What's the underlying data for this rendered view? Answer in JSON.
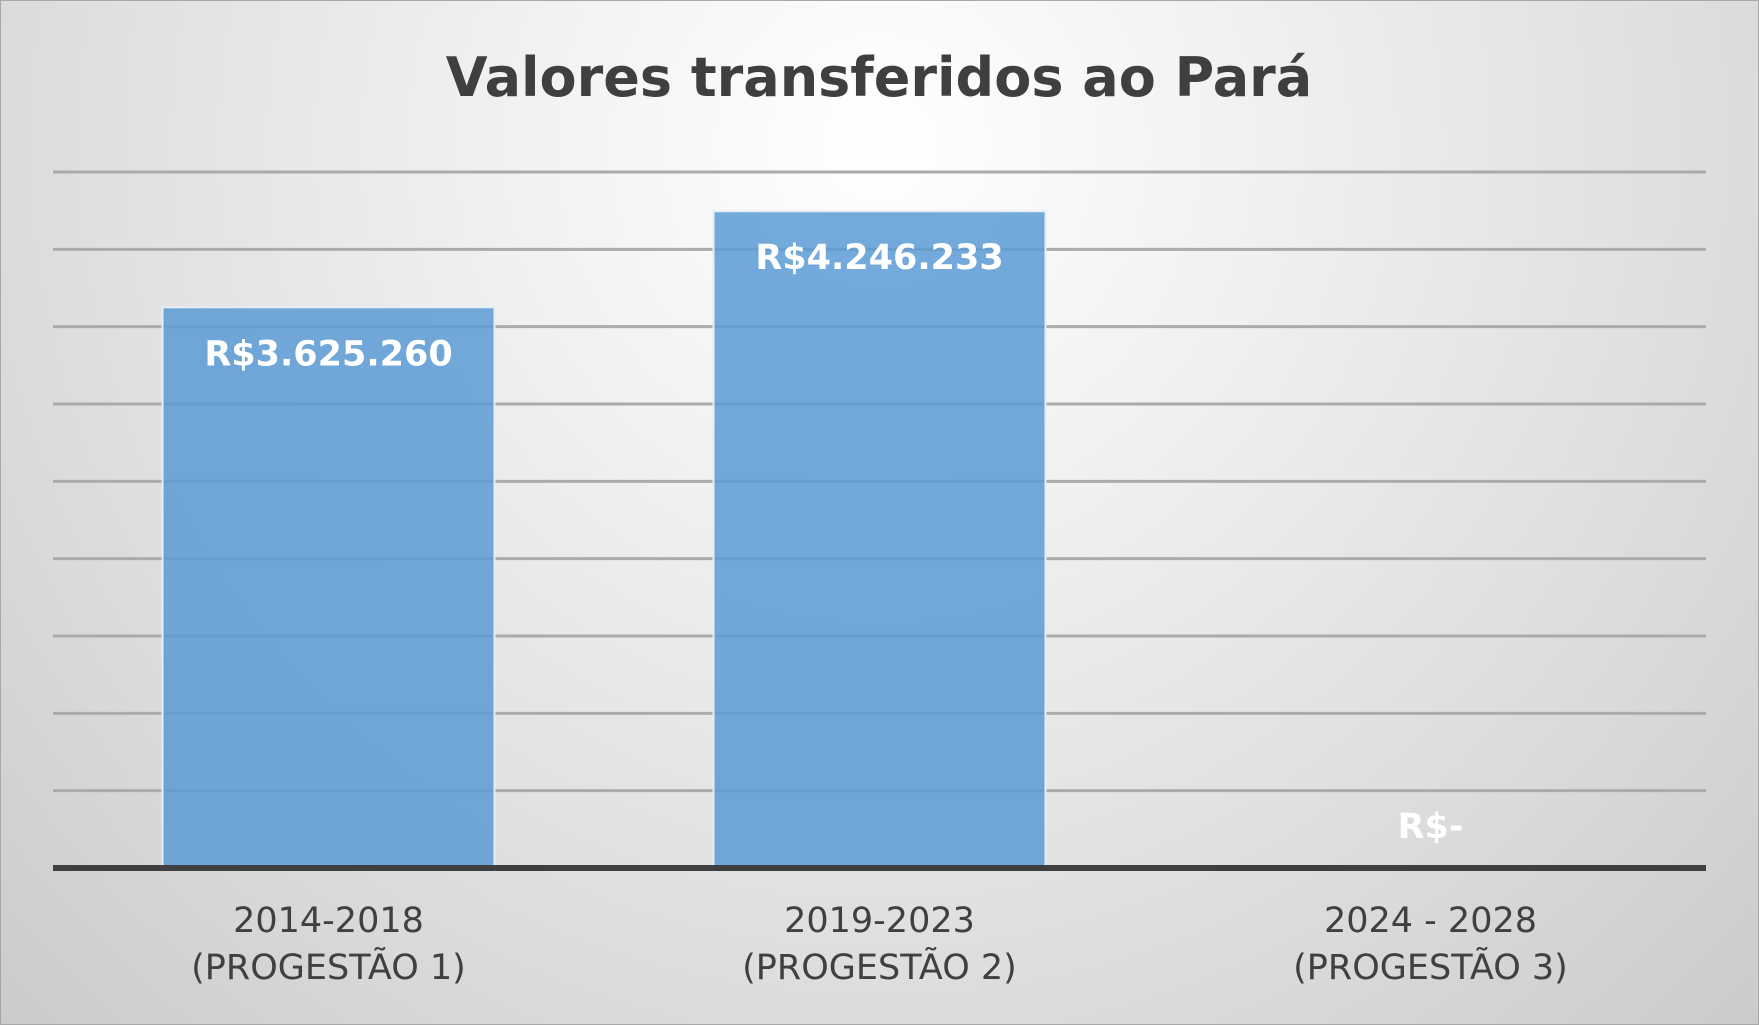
{
  "chart_data": {
    "type": "bar",
    "title": "Valores transferidos ao Pará",
    "categories": [
      [
        "2014-2018",
        "(PROGESTÃO 1)"
      ],
      [
        "2019-2023",
        "(PROGESTÃO 2)"
      ],
      [
        "2024 - 2028",
        "(PROGESTÃO 3)"
      ]
    ],
    "values": [
      3625260,
      4246233,
      0
    ],
    "data_labels": [
      "R$3.625.260",
      "R$4.246.233",
      "R$-"
    ],
    "ylim": [
      0,
      4500000
    ],
    "grid": true,
    "legend": "none",
    "colors": {
      "bar": "#5b9bd5",
      "data_label": "#ffffff",
      "title": "#3f3f3f",
      "axis": "#3f3f3f"
    }
  }
}
